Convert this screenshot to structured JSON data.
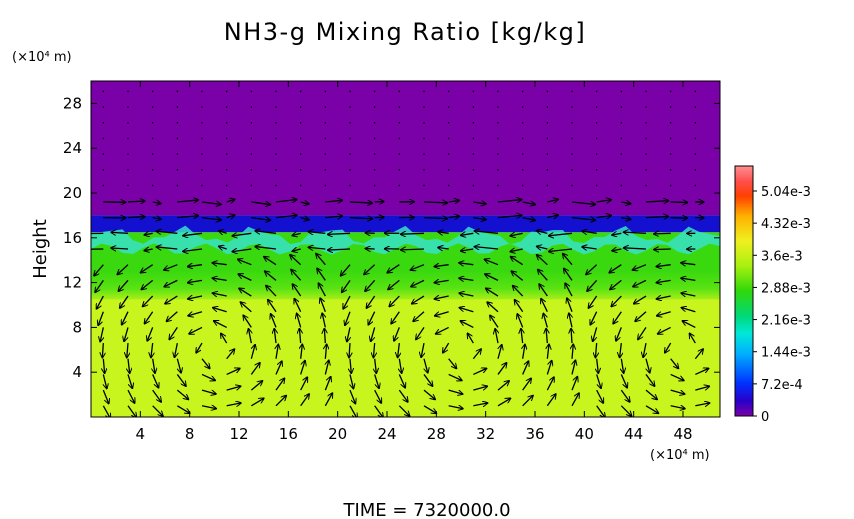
{
  "chart_data": {
    "type": "heatmap",
    "title": "NH3-g Mixing Ratio [kg/kg]",
    "ylabel": "Height",
    "x_unit_label": "(×10⁴ m)",
    "y_unit_label": "(×10⁴ m)",
    "footer": "TIME = 7320000.0",
    "xlim": [
      0,
      51
    ],
    "ylim": [
      0,
      30
    ],
    "xticks": [
      "4",
      "8",
      "12",
      "16",
      "20",
      "24",
      "28",
      "32",
      "36",
      "40",
      "44",
      "48"
    ],
    "xtick_values": [
      4,
      8,
      12,
      16,
      20,
      24,
      28,
      32,
      36,
      40,
      44,
      48
    ],
    "yticks": [
      "4",
      "8",
      "12",
      "16",
      "20",
      "24",
      "28"
    ],
    "ytick_values": [
      4,
      8,
      12,
      16,
      20,
      24,
      28
    ],
    "colorbar": {
      "range": [
        0,
        0.0056
      ],
      "labels": [
        "0",
        "7.2e-4",
        "1.44e-3",
        "2.16e-3",
        "2.88e-3",
        "3.6e-3",
        "4.32e-3",
        "5.04e-3"
      ],
      "label_values": [
        0,
        0.00072,
        0.00144,
        0.00216,
        0.00288,
        0.0036,
        0.00432,
        0.00504
      ]
    },
    "field_layers": [
      {
        "from_height": 0,
        "to_height": 11.5,
        "value": 0.0034,
        "description_color": "#c8f51e"
      },
      {
        "from_height": 11.5,
        "to_height": 16.5,
        "value": 0.0029,
        "description_color": "#3ad90f"
      },
      {
        "from_height": 16.5,
        "to_height": 18,
        "value": 0.0005,
        "description_color": "#1410d0"
      },
      {
        "from_height": 18,
        "to_height": 30,
        "value": 0.0,
        "description_color": "#7a00a8"
      }
    ],
    "wind_vectors": "arrows overlaid on grid, roughly 2 units spacing",
    "colors": {
      "background": "#ffffff",
      "arrow": "#000000"
    }
  }
}
